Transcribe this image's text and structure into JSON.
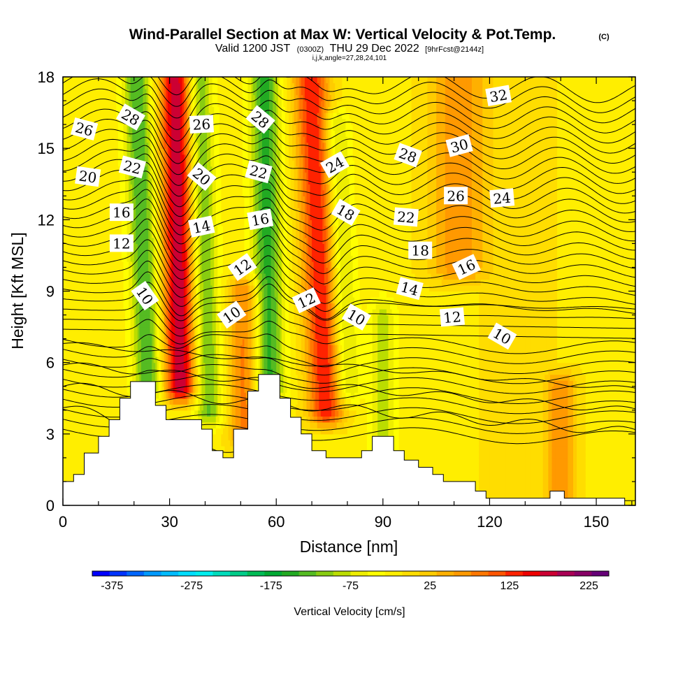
{
  "chart_data": {
    "type": "heatmap",
    "title": "Wind-Parallel Section at Max W: Vertical Velocity & Pot.Temp.",
    "copyright": "(C)",
    "subtitle": {
      "valid": "Valid 1200 JST",
      "utc": "(0300Z)",
      "date": "THU 29 Dec 2022",
      "forecast": "[9hrFcst@2144z]"
    },
    "grid_info": "i,j,k,angle=27,28,24,101",
    "xlabel": "Distance [nm]",
    "ylabel": "Height [Kft MSL]",
    "xlim": [
      0,
      161
    ],
    "ylim": [
      0,
      18
    ],
    "x_ticks": [
      0,
      30,
      60,
      90,
      120,
      150
    ],
    "y_ticks": [
      0,
      3,
      6,
      9,
      12,
      15,
      18
    ],
    "colorbar": {
      "label": "Vertical Velocity [cm/s]",
      "range": [
        -400,
        250
      ],
      "step": 25,
      "tick_labels": [
        "-375",
        "-275",
        "-175",
        "-75",
        "25",
        "125",
        "225"
      ],
      "tick_values": [
        -375,
        -275,
        -175,
        -75,
        25,
        125,
        225
      ],
      "colors": [
        "#0000ff",
        "#0033ff",
        "#0066ff",
        "#0099ff",
        "#00bbff",
        "#00ddff",
        "#00eeee",
        "#00dcbb",
        "#00cc88",
        "#00bb55",
        "#00aa33",
        "#22aa22",
        "#55bb22",
        "#88cc11",
        "#bbdd00",
        "#eeee00",
        "#ffff00",
        "#ffee00",
        "#ffdd00",
        "#ffcc00",
        "#ffb000",
        "#ff9900",
        "#ff7700",
        "#ff5500",
        "#ff2200",
        "#ee0000",
        "#cc0033",
        "#aa0055",
        "#880066",
        "#660077"
      ]
    },
    "wind_field": {
      "base": 40,
      "features": [
        {
          "x": 24,
          "z0": 5,
          "z1": 18,
          "tilt": -0.25,
          "w": -140,
          "sigma": 2.8
        },
        {
          "x": 33,
          "z0": 5,
          "z1": 18,
          "tilt": -0.1,
          "w": 235,
          "sigma": 3.2
        },
        {
          "x": 41,
          "z0": 4,
          "z1": 18,
          "tilt": -0.2,
          "w": -120,
          "sigma": 2.6
        },
        {
          "x": 51,
          "z0": 3,
          "z1": 9,
          "tilt": 0.0,
          "w": 120,
          "sigma": 3.0
        },
        {
          "x": 58,
          "z0": 5,
          "z1": 18,
          "tilt": -0.1,
          "w": -150,
          "sigma": 3.0
        },
        {
          "x": 74,
          "z0": 4,
          "z1": 18,
          "tilt": -0.3,
          "w": 185,
          "sigma": 3.5
        },
        {
          "x": 80,
          "z0": 5,
          "z1": 16,
          "tilt": -0.3,
          "w": -90,
          "sigma": 2.5
        },
        {
          "x": 90,
          "z0": 2,
          "z1": 8,
          "tilt": 0.0,
          "w": -75,
          "sigma": 2.5
        },
        {
          "x": 111,
          "z0": 10,
          "z1": 18,
          "tilt": 0.0,
          "w": 95,
          "sigma": 6.0
        },
        {
          "x": 140,
          "z0": 0,
          "z1": 5,
          "tilt": 0.0,
          "w": 100,
          "sigma": 3.0
        },
        {
          "x": 128,
          "z0": 0,
          "z1": 18,
          "tilt": 0.0,
          "w": 15,
          "sigma": 12.0
        }
      ]
    },
    "terrain": [
      [
        0,
        1.0
      ],
      [
        3,
        1.0
      ],
      [
        3,
        1.3
      ],
      [
        6,
        1.3
      ],
      [
        6,
        2.2
      ],
      [
        10,
        2.2
      ],
      [
        10,
        2.9
      ],
      [
        13,
        2.9
      ],
      [
        13,
        3.6
      ],
      [
        16,
        3.6
      ],
      [
        16,
        4.5
      ],
      [
        19,
        4.5
      ],
      [
        19,
        5.2
      ],
      [
        26,
        5.2
      ],
      [
        26,
        4.2
      ],
      [
        29,
        4.2
      ],
      [
        29,
        3.6
      ],
      [
        39,
        3.6
      ],
      [
        39,
        3.2
      ],
      [
        42,
        3.2
      ],
      [
        42,
        2.3
      ],
      [
        45,
        2.3
      ],
      [
        45,
        2.0
      ],
      [
        48,
        2.0
      ],
      [
        48,
        3.2
      ],
      [
        52,
        3.2
      ],
      [
        52,
        4.8
      ],
      [
        55,
        4.8
      ],
      [
        55,
        5.5
      ],
      [
        61,
        5.5
      ],
      [
        61,
        4.5
      ],
      [
        64,
        4.5
      ],
      [
        64,
        3.7
      ],
      [
        67,
        3.7
      ],
      [
        67,
        3.0
      ],
      [
        70,
        3.0
      ],
      [
        70,
        2.3
      ],
      [
        74,
        2.3
      ],
      [
        74,
        2.0
      ],
      [
        84,
        2.0
      ],
      [
        84,
        2.3
      ],
      [
        87,
        2.3
      ],
      [
        87,
        2.9
      ],
      [
        93,
        2.9
      ],
      [
        93,
        2.3
      ],
      [
        96,
        2.3
      ],
      [
        96,
        1.9
      ],
      [
        100,
        1.9
      ],
      [
        100,
        1.6
      ],
      [
        104,
        1.6
      ],
      [
        104,
        1.3
      ],
      [
        107,
        1.3
      ],
      [
        107,
        1.0
      ],
      [
        116,
        1.0
      ],
      [
        116,
        0.6
      ],
      [
        119,
        0.6
      ],
      [
        119,
        0.3
      ],
      [
        137,
        0.3
      ],
      [
        137,
        0.6
      ],
      [
        141,
        0.6
      ],
      [
        141,
        0.3
      ],
      [
        158,
        0.3
      ],
      [
        158,
        0
      ]
    ],
    "theta_contours": {
      "interval": 1,
      "labeled": [
        {
          "text": "26",
          "x": 6,
          "z": 15.8,
          "rotation": 15
        },
        {
          "text": "28",
          "x": 19,
          "z": 16.3,
          "rotation": 30
        },
        {
          "text": "20",
          "x": 7,
          "z": 13.8,
          "rotation": 8
        },
        {
          "text": "22",
          "x": 19.5,
          "z": 14.2,
          "rotation": 15
        },
        {
          "text": "26",
          "x": 39,
          "z": 16.0,
          "rotation": -3
        },
        {
          "text": "28",
          "x": 55.5,
          "z": 16.2,
          "rotation": 40
        },
        {
          "text": "20",
          "x": 39,
          "z": 13.8,
          "rotation": 40
        },
        {
          "text": "22",
          "x": 55,
          "z": 14.0,
          "rotation": 15
        },
        {
          "text": "24",
          "x": 76.5,
          "z": 14.3,
          "rotation": -30
        },
        {
          "text": "28",
          "x": 97,
          "z": 14.7,
          "rotation": 20
        },
        {
          "text": "30",
          "x": 111.5,
          "z": 15.1,
          "rotation": -15
        },
        {
          "text": "32",
          "x": 122.5,
          "z": 17.2,
          "rotation": -10
        },
        {
          "text": "16",
          "x": 16.5,
          "z": 12.3,
          "rotation": 0
        },
        {
          "text": "14",
          "x": 39,
          "z": 11.7,
          "rotation": -12
        },
        {
          "text": "16",
          "x": 55.5,
          "z": 12.0,
          "rotation": -10
        },
        {
          "text": "18",
          "x": 79.5,
          "z": 12.3,
          "rotation": 30
        },
        {
          "text": "22",
          "x": 96.5,
          "z": 12.1,
          "rotation": 5
        },
        {
          "text": "26",
          "x": 110.5,
          "z": 13.0,
          "rotation": 0
        },
        {
          "text": "24",
          "x": 123.5,
          "z": 12.9,
          "rotation": -5
        },
        {
          "text": "12",
          "x": 16.5,
          "z": 11.0,
          "rotation": 0
        },
        {
          "text": "12",
          "x": 50.5,
          "z": 10.0,
          "rotation": -35
        },
        {
          "text": "18",
          "x": 100.5,
          "z": 10.7,
          "rotation": 0
        },
        {
          "text": "16",
          "x": 113.5,
          "z": 10.0,
          "rotation": -25
        },
        {
          "text": "10",
          "x": 23,
          "z": 8.8,
          "rotation": 55
        },
        {
          "text": "14",
          "x": 97.5,
          "z": 9.1,
          "rotation": 15
        },
        {
          "text": "10",
          "x": 47.5,
          "z": 8.0,
          "rotation": -35
        },
        {
          "text": "12",
          "x": 68.5,
          "z": 8.6,
          "rotation": -25
        },
        {
          "text": "10",
          "x": 82.5,
          "z": 7.9,
          "rotation": 30
        },
        {
          "text": "12",
          "x": 109.5,
          "z": 7.9,
          "rotation": -5
        },
        {
          "text": "10",
          "x": 123.5,
          "z": 7.1,
          "rotation": 30
        }
      ]
    }
  }
}
